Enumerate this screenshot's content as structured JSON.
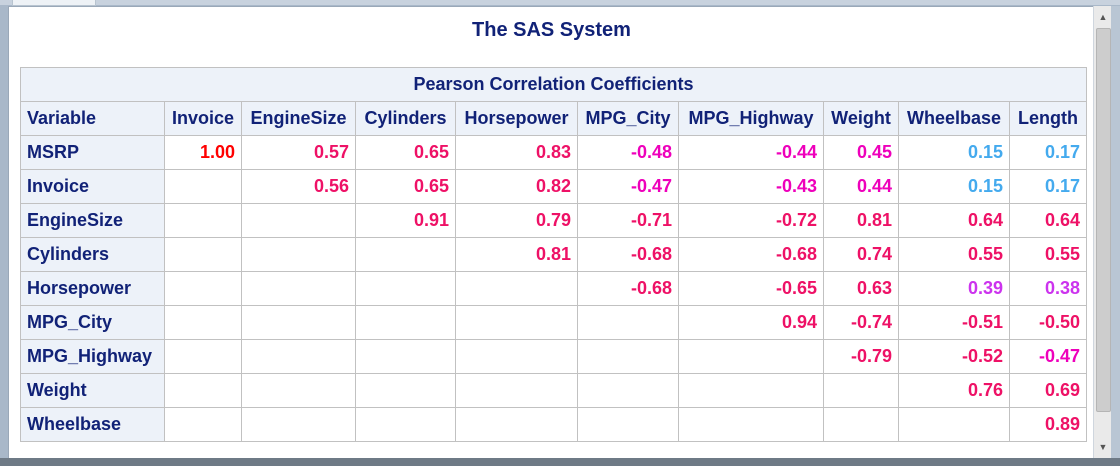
{
  "report": {
    "title": "The SAS System",
    "table_caption": "Pearson Correlation Coefficients",
    "row_header_label": "Variable",
    "columns": [
      "Invoice",
      "EngineSize",
      "Cylinders",
      "Horsepower",
      "MPG_City",
      "MPG_Highway",
      "Weight",
      "Wheelbase",
      "Length"
    ],
    "rows": [
      {
        "label": "MSRP",
        "values": [
          "1.00",
          "0.57",
          "0.65",
          "0.83",
          "-0.48",
          "-0.44",
          "0.45",
          "0.15",
          "0.17"
        ]
      },
      {
        "label": "Invoice",
        "values": [
          "",
          "0.56",
          "0.65",
          "0.82",
          "-0.47",
          "-0.43",
          "0.44",
          "0.15",
          "0.17"
        ]
      },
      {
        "label": "EngineSize",
        "values": [
          "",
          "",
          "0.91",
          "0.79",
          "-0.71",
          "-0.72",
          "0.81",
          "0.64",
          "0.64"
        ]
      },
      {
        "label": "Cylinders",
        "values": [
          "",
          "",
          "",
          "0.81",
          "-0.68",
          "-0.68",
          "0.74",
          "0.55",
          "0.55"
        ]
      },
      {
        "label": "Horsepower",
        "values": [
          "",
          "",
          "",
          "",
          "-0.68",
          "-0.65",
          "0.63",
          "0.39",
          "0.38"
        ]
      },
      {
        "label": "MPG_City",
        "values": [
          "",
          "",
          "",
          "",
          "",
          "0.94",
          "-0.74",
          "-0.51",
          "-0.50"
        ]
      },
      {
        "label": "MPG_Highway",
        "values": [
          "",
          "",
          "",
          "",
          "",
          "",
          "-0.79",
          "-0.52",
          "-0.47"
        ]
      },
      {
        "label": "Weight",
        "values": [
          "",
          "",
          "",
          "",
          "",
          "",
          "",
          "0.76",
          "0.69"
        ]
      },
      {
        "label": "Wheelbase",
        "values": [
          "",
          "",
          "",
          "",
          "",
          "",
          "",
          "",
          "0.89"
        ]
      }
    ]
  },
  "colors": {
    "header_text": "#112277",
    "header_bg": "#edf2f9",
    "strong": "#ff0000",
    "high": "#ee1166",
    "medium": "#ee00bb",
    "lowmid": "#cc33ee",
    "low": "#44aaee"
  }
}
